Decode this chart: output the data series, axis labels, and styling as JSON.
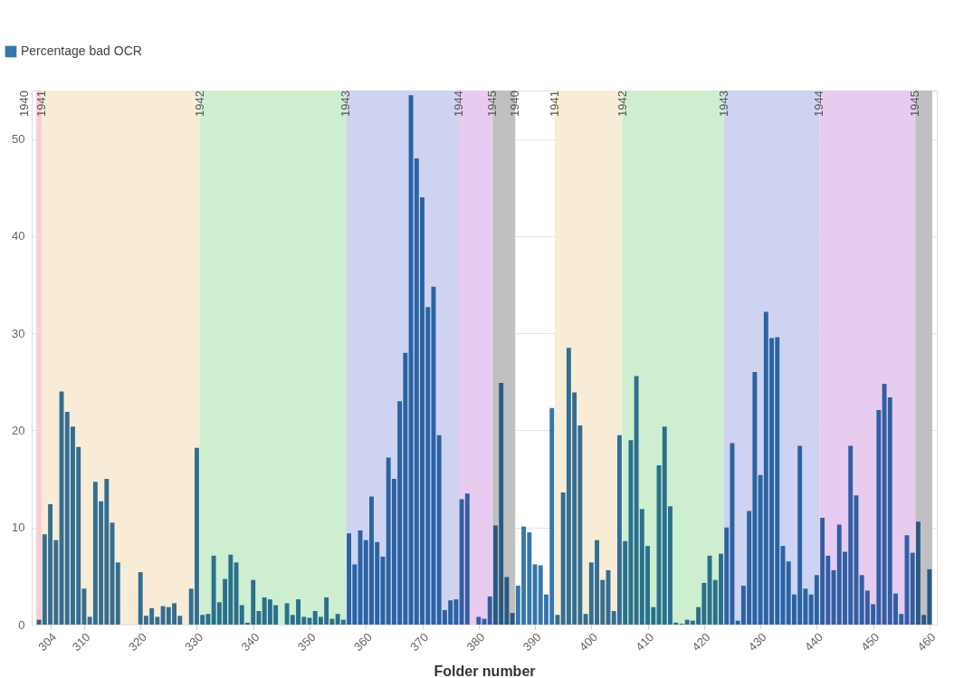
{
  "chart_data": {
    "type": "bar",
    "xlabel": "Folder number",
    "legend": "top left",
    "grid": "y",
    "x": [
      302,
      303,
      304,
      305,
      306,
      307,
      308,
      309,
      310,
      311,
      312,
      313,
      314,
      315,
      316,
      317,
      318,
      319,
      320,
      321,
      322,
      323,
      324,
      325,
      326,
      327,
      328,
      329,
      330,
      331,
      332,
      333,
      334,
      335,
      336,
      337,
      338,
      339,
      340,
      341,
      342,
      343,
      344,
      345,
      346,
      347,
      348,
      349,
      350,
      351,
      352,
      353,
      354,
      355,
      356,
      357,
      358,
      359,
      360,
      361,
      362,
      363,
      364,
      365,
      366,
      367,
      368,
      369,
      370,
      371,
      372,
      373,
      374,
      375,
      376,
      377,
      378,
      379,
      380,
      381,
      382,
      383,
      384,
      385,
      386,
      387,
      388,
      389,
      390,
      391,
      392,
      393,
      394,
      395,
      396,
      397,
      398,
      399,
      400,
      401,
      402,
      403,
      404,
      405,
      406,
      407,
      408,
      409,
      410,
      411,
      412,
      413,
      414,
      415,
      416,
      417,
      418,
      419,
      420,
      421,
      422,
      423,
      424,
      425,
      426,
      427,
      428,
      429,
      430,
      431,
      432,
      433,
      434,
      435,
      436,
      437,
      438,
      439,
      440,
      441,
      442,
      443,
      444,
      445,
      446,
      447,
      448,
      449,
      450,
      451,
      452,
      453,
      454,
      455,
      456,
      457,
      458,
      459,
      460
    ],
    "series": [
      {
        "name": "Percentage bad OCR",
        "color": "#3477ae",
        "values": [
          0.5,
          9.3,
          12.4,
          8.7,
          24.0,
          21.9,
          20.4,
          18.3,
          3.7,
          0.8,
          14.7,
          12.7,
          15.0,
          10.5,
          6.4,
          null,
          null,
          null,
          5.4,
          0.9,
          1.7,
          0.8,
          1.9,
          1.8,
          2.2,
          0.9,
          null,
          3.7,
          18.2,
          1.0,
          1.1,
          7.1,
          2.3,
          4.7,
          7.2,
          6.4,
          2.0,
          0.2,
          4.6,
          1.4,
          2.8,
          2.6,
          2.0,
          null,
          2.2,
          1.0,
          2.6,
          0.8,
          0.7,
          1.4,
          0.8,
          2.8,
          0.6,
          1.1,
          0.5,
          9.4,
          6.2,
          9.7,
          8.7,
          13.2,
          8.5,
          7.0,
          17.2,
          15.0,
          23.0,
          28.0,
          54.5,
          48.0,
          44.0,
          32.7,
          34.8,
          19.5,
          1.5,
          2.5,
          2.6,
          12.9,
          13.5,
          null,
          0.8,
          0.6,
          2.9,
          10.2,
          24.9,
          4.9,
          1.2,
          4.0,
          10.1,
          9.5,
          6.2,
          6.1,
          3.1,
          22.3,
          1.0,
          13.6,
          28.5,
          23.9,
          20.5,
          1.1,
          6.4,
          8.7,
          4.6,
          5.6,
          1.4,
          19.5,
          8.6,
          19.0,
          25.6,
          11.9,
          8.1,
          1.8,
          16.4,
          20.4,
          12.2,
          0.2,
          0.1,
          0.5,
          0.4,
          1.8,
          4.3,
          7.1,
          4.6,
          7.3,
          10.0,
          18.7,
          0.4,
          4.0,
          11.7,
          26.0,
          15.4,
          32.2,
          29.5,
          29.6,
          8.1,
          6.5,
          3.1,
          18.4,
          3.7,
          3.1,
          5.1,
          11.0,
          7.1,
          5.6,
          10.3,
          7.5,
          18.4,
          13.3,
          5.1,
          3.5,
          2.1,
          22.1,
          24.8,
          23.4,
          3.2,
          1.1,
          9.2,
          7.4,
          10.6,
          1.0,
          5.7
        ]
      }
    ],
    "xlim": [
      301.5,
      460.5
    ],
    "xticks": [
      304,
      310,
      320,
      330,
      340,
      350,
      360,
      370,
      380,
      390,
      400,
      410,
      420,
      430,
      440,
      450,
      460
    ],
    "ylim": [
      0,
      55
    ],
    "yticks": [
      0,
      10,
      20,
      30,
      40,
      50
    ],
    "annotations": [
      {
        "text": "1940",
        "x": 386.5,
        "y": 55
      }
    ],
    "bands": [
      {
        "axis": "x",
        "from": 301.5,
        "to": 302.5,
        "label": "1940",
        "color": "#f9cfd3"
      },
      {
        "axis": "x",
        "from": 302.5,
        "to": 330.5,
        "label": "1941",
        "color": "#f8ecd6"
      },
      {
        "axis": "x",
        "from": 330.5,
        "to": 356.5,
        "label": "1942",
        "color": "#cdefd0"
      },
      {
        "axis": "x",
        "from": 356.5,
        "to": 376.5,
        "label": "1943",
        "color": "#cdd3f0"
      },
      {
        "axis": "x",
        "from": 376.5,
        "to": 382.5,
        "label": "1944",
        "color": "#e8ccf0"
      },
      {
        "axis": "x",
        "from": 382.5,
        "to": 386.5,
        "label": "1945",
        "color": "#c0c0c0"
      },
      {
        "axis": "x",
        "from": 393.5,
        "to": 405.5,
        "label": "1941",
        "color": "#f8ecd6"
      },
      {
        "axis": "x",
        "from": 405.5,
        "to": 423.5,
        "label": "1942",
        "color": "#cdefd0"
      },
      {
        "axis": "x",
        "from": 423.5,
        "to": 440.5,
        "label": "1943",
        "color": "#cdd3f0"
      },
      {
        "axis": "x",
        "from": 440.5,
        "to": 457.5,
        "label": "1944",
        "color": "#e8ccf0"
      },
      {
        "axis": "x",
        "from": 457.5,
        "to": 460.5,
        "label": "1945",
        "color": "#c0c0c0"
      }
    ]
  }
}
